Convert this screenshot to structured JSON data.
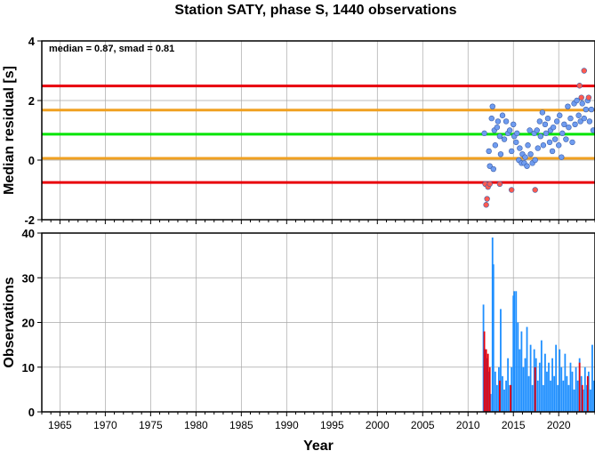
{
  "title": "Station SATY, phase S, 1440 observations",
  "chart_data": [
    {
      "type": "scatter",
      "panel": "top",
      "ylabel": "Median residual [s]",
      "xlim": [
        1963,
        2024
      ],
      "ylim": [
        -2,
        4
      ],
      "yticks": [
        -2,
        0,
        2,
        4
      ],
      "grid": true,
      "annotation": "median = 0.87, smad = 0.81",
      "reference_lines": [
        {
          "value": 2.49,
          "color": "#e8000b"
        },
        {
          "value": 1.68,
          "color": "#f0a020"
        },
        {
          "value": 0.87,
          "color": "#00e400"
        },
        {
          "value": 0.06,
          "color": "#f0a020"
        },
        {
          "value": -0.75,
          "color": "#e8000b"
        }
      ],
      "series": [
        {
          "color": "#6f9cf0",
          "points": [
            [
              2011.8,
              0.9
            ],
            [
              2012.3,
              0.3
            ],
            [
              2012.4,
              -0.2
            ],
            [
              2012.6,
              1.4
            ],
            [
              2012.7,
              1.8
            ],
            [
              2012.8,
              -0.3
            ],
            [
              2012.9,
              1.0
            ],
            [
              2013.0,
              0.5
            ],
            [
              2013.2,
              1.1
            ],
            [
              2013.3,
              1.3
            ],
            [
              2013.5,
              0.8
            ],
            [
              2013.6,
              0.2
            ],
            [
              2013.8,
              1.5
            ],
            [
              2014.0,
              0.7
            ],
            [
              2014.2,
              1.3
            ],
            [
              2014.4,
              0.9
            ],
            [
              2014.6,
              1.0
            ],
            [
              2014.8,
              0.3
            ],
            [
              2015.0,
              1.2
            ],
            [
              2015.1,
              0.8
            ],
            [
              2015.3,
              0.6
            ],
            [
              2015.4,
              0.9
            ],
            [
              2015.6,
              0.0
            ],
            [
              2015.7,
              0.4
            ],
            [
              2015.9,
              -0.1
            ],
            [
              2016.0,
              0.2
            ],
            [
              2016.2,
              -0.1
            ],
            [
              2016.3,
              0.1
            ],
            [
              2016.5,
              -0.2
            ],
            [
              2016.6,
              0.5
            ],
            [
              2016.8,
              1.0
            ],
            [
              2016.9,
              0.2
            ],
            [
              2017.1,
              -0.1
            ],
            [
              2017.3,
              0.9
            ],
            [
              2017.4,
              0.0
            ],
            [
              2017.6,
              1.0
            ],
            [
              2017.7,
              0.4
            ],
            [
              2017.9,
              1.3
            ],
            [
              2018.0,
              0.8
            ],
            [
              2018.2,
              1.6
            ],
            [
              2018.3,
              0.5
            ],
            [
              2018.5,
              1.2
            ],
            [
              2018.6,
              0.9
            ],
            [
              2018.8,
              1.4
            ],
            [
              2019.0,
              0.6
            ],
            [
              2019.1,
              1.0
            ],
            [
              2019.3,
              0.3
            ],
            [
              2019.4,
              1.1
            ],
            [
              2019.6,
              0.7
            ],
            [
              2019.8,
              1.3
            ],
            [
              2020.0,
              0.5
            ],
            [
              2020.1,
              1.5
            ],
            [
              2020.3,
              0.1
            ],
            [
              2020.4,
              0.9
            ],
            [
              2020.6,
              1.2
            ],
            [
              2020.8,
              0.7
            ],
            [
              2021.0,
              1.8
            ],
            [
              2021.1,
              1.1
            ],
            [
              2021.3,
              1.4
            ],
            [
              2021.5,
              0.6
            ],
            [
              2021.7,
              1.9
            ],
            [
              2021.8,
              1.2
            ],
            [
              2022.0,
              2.0
            ],
            [
              2022.2,
              1.5
            ],
            [
              2022.4,
              1.3
            ],
            [
              2022.6,
              1.9
            ],
            [
              2022.8,
              1.4
            ],
            [
              2023.0,
              1.7
            ],
            [
              2023.2,
              2.0
            ],
            [
              2023.4,
              1.3
            ],
            [
              2023.6,
              1.7
            ],
            [
              2023.8,
              1.0
            ]
          ]
        },
        {
          "color": "#ff5a50",
          "points": [
            [
              2011.9,
              -0.8
            ],
            [
              2012.0,
              -1.5
            ],
            [
              2012.1,
              -1.3
            ],
            [
              2012.2,
              -0.9
            ],
            [
              2012.4,
              -0.8
            ],
            [
              2013.5,
              -0.8
            ],
            [
              2014.8,
              -1.0
            ],
            [
              2017.4,
              -1.0
            ],
            [
              2022.3,
              2.5
            ],
            [
              2022.5,
              2.1
            ],
            [
              2022.8,
              3.0
            ],
            [
              2023.3,
              2.1
            ]
          ]
        }
      ]
    },
    {
      "type": "bar",
      "panel": "bottom",
      "xlabel": "Year",
      "ylabel": "Observations",
      "xlim": [
        1963,
        2024
      ],
      "ylim": [
        0,
        40
      ],
      "xticks": [
        1965,
        1970,
        1975,
        1980,
        1985,
        1990,
        1995,
        2000,
        2005,
        2010,
        2015,
        2020
      ],
      "yticks": [
        0,
        10,
        20,
        30,
        40
      ],
      "grid": true,
      "series": [
        {
          "color": "#1e8fff",
          "bars": [
            [
              2011.7,
              24
            ],
            [
              2011.9,
              14
            ],
            [
              2012.1,
              12
            ],
            [
              2012.3,
              9
            ],
            [
              2012.5,
              4
            ],
            [
              2012.7,
              39
            ],
            [
              2012.8,
              33
            ],
            [
              2013.0,
              9
            ],
            [
              2013.2,
              6
            ],
            [
              2013.4,
              10
            ],
            [
              2013.6,
              23
            ],
            [
              2013.8,
              8
            ],
            [
              2014.0,
              5
            ],
            [
              2014.2,
              7
            ],
            [
              2014.4,
              12
            ],
            [
              2014.6,
              6
            ],
            [
              2014.8,
              10
            ],
            [
              2015.0,
              26
            ],
            [
              2015.1,
              27
            ],
            [
              2015.3,
              27
            ],
            [
              2015.5,
              20
            ],
            [
              2015.7,
              14
            ],
            [
              2015.9,
              18
            ],
            [
              2016.1,
              10
            ],
            [
              2016.3,
              12
            ],
            [
              2016.5,
              19
            ],
            [
              2016.7,
              8
            ],
            [
              2016.9,
              15
            ],
            [
              2017.1,
              6
            ],
            [
              2017.3,
              14
            ],
            [
              2017.5,
              12
            ],
            [
              2017.7,
              7
            ],
            [
              2017.9,
              11
            ],
            [
              2018.1,
              16
            ],
            [
              2018.3,
              6
            ],
            [
              2018.5,
              13
            ],
            [
              2018.7,
              9
            ],
            [
              2018.9,
              11
            ],
            [
              2019.1,
              7
            ],
            [
              2019.3,
              12
            ],
            [
              2019.5,
              8
            ],
            [
              2019.7,
              15
            ],
            [
              2019.9,
              6
            ],
            [
              2020.1,
              14
            ],
            [
              2020.3,
              10
            ],
            [
              2020.5,
              7
            ],
            [
              2020.7,
              13
            ],
            [
              2020.9,
              8
            ],
            [
              2021.1,
              6
            ],
            [
              2021.3,
              11
            ],
            [
              2021.5,
              9
            ],
            [
              2021.7,
              5
            ],
            [
              2021.9,
              10
            ],
            [
              2022.1,
              7
            ],
            [
              2022.3,
              12
            ],
            [
              2022.5,
              8
            ],
            [
              2022.7,
              5
            ],
            [
              2022.9,
              10
            ],
            [
              2023.1,
              6
            ],
            [
              2023.3,
              9
            ],
            [
              2023.5,
              5
            ],
            [
              2023.7,
              15
            ],
            [
              2023.9,
              7
            ]
          ]
        },
        {
          "color": "#e8000b",
          "bars": [
            [
              2011.8,
              18
            ],
            [
              2012.0,
              14
            ],
            [
              2012.2,
              13
            ],
            [
              2012.4,
              10
            ],
            [
              2013.5,
              7
            ],
            [
              2014.7,
              6
            ],
            [
              2017.4,
              10
            ],
            [
              2022.3,
              11
            ],
            [
              2022.6,
              6
            ],
            [
              2023.2,
              8
            ]
          ]
        }
      ]
    }
  ]
}
